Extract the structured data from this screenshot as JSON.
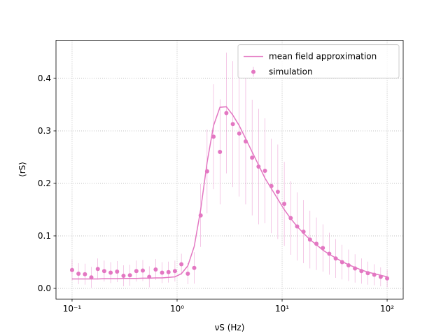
{
  "chart_data": {
    "type": "line-errorbar",
    "xlabel": "νS (Hz)",
    "ylabel": "⟨rS⟩",
    "log_x": true,
    "grid": true,
    "legend": "upper right",
    "xlim": [
      0.0703,
      142.2
    ],
    "ylim": [
      -0.0203,
      0.4725
    ],
    "xticks": [
      {
        "value": 0.1,
        "label": "10⁻¹"
      },
      {
        "value": 1,
        "label": "10⁰"
      },
      {
        "value": 10,
        "label": "10¹"
      },
      {
        "value": 100,
        "label": "10²"
      }
    ],
    "yticks": [
      {
        "value": 0,
        "label": "0.0"
      },
      0.1,
      0.2,
      0.3,
      0.4
    ],
    "x": [
      0.1,
      0.1151,
      0.1326,
      0.1526,
      0.1758,
      0.2024,
      0.233,
      0.2683,
      0.3089,
      0.3556,
      0.4095,
      0.4715,
      0.5429,
      0.6251,
      0.7197,
      0.8286,
      0.9541,
      1.0985,
      1.2649,
      1.4563,
      1.6768,
      1.9307,
      2.223,
      2.5595,
      2.9471,
      3.3932,
      3.9069,
      4.4984,
      5.1795,
      5.9636,
      6.8665,
      7.906,
      9.103,
      10.481,
      12.068,
      13.895,
      15.999,
      18.421,
      21.21,
      24.421,
      28.118,
      32.375,
      37.276,
      42.919,
      49.417,
      56.899,
      65.513,
      75.431,
      86.851,
      100
    ],
    "series": [
      {
        "name": "mean field approximation",
        "kind": "line",
        "color": "#e377c2",
        "values": [
          0.018,
          0.018,
          0.018,
          0.018,
          0.018,
          0.0185,
          0.0185,
          0.0185,
          0.019,
          0.019,
          0.019,
          0.0195,
          0.0195,
          0.02,
          0.02,
          0.021,
          0.022,
          0.028,
          0.043,
          0.08,
          0.15,
          0.24,
          0.31,
          0.345,
          0.346,
          0.33,
          0.31,
          0.285,
          0.26,
          0.235,
          0.21,
          0.19,
          0.17,
          0.15,
          0.133,
          0.118,
          0.105,
          0.093,
          0.083,
          0.073,
          0.065,
          0.058,
          0.051,
          0.045,
          0.04,
          0.035,
          0.031,
          0.028,
          0.025,
          0.022
        ]
      },
      {
        "name": "simulation",
        "kind": "errorbar",
        "color": "#e377c2",
        "values": [
          0.035,
          0.028,
          0.027,
          0.021,
          0.037,
          0.033,
          0.03,
          0.032,
          0.024,
          0.025,
          0.033,
          0.034,
          0.022,
          0.036,
          0.03,
          0.031,
          0.033,
          0.046,
          0.028,
          0.039,
          0.139,
          0.223,
          0.289,
          0.26,
          0.334,
          0.313,
          0.295,
          0.28,
          0.249,
          0.232,
          0.224,
          0.195,
          0.184,
          0.161,
          0.134,
          0.118,
          0.108,
          0.093,
          0.085,
          0.077,
          0.066,
          0.057,
          0.05,
          0.044,
          0.038,
          0.033,
          0.029,
          0.026,
          0.022,
          0.019
        ],
        "errors": [
          0.02,
          0.02,
          0.02,
          0.02,
          0.02,
          0.02,
          0.02,
          0.02,
          0.02,
          0.02,
          0.02,
          0.02,
          0.02,
          0.02,
          0.02,
          0.02,
          0.02,
          0.02,
          0.02,
          0.03,
          0.06,
          0.08,
          0.1,
          0.1,
          0.115,
          0.12,
          0.12,
          0.12,
          0.11,
          0.11,
          0.1,
          0.09,
          0.09,
          0.08,
          0.07,
          0.065,
          0.06,
          0.055,
          0.05,
          0.045,
          0.04,
          0.037,
          0.033,
          0.03,
          0.027,
          0.024,
          0.022,
          0.02,
          0.018,
          0.017
        ]
      }
    ]
  }
}
